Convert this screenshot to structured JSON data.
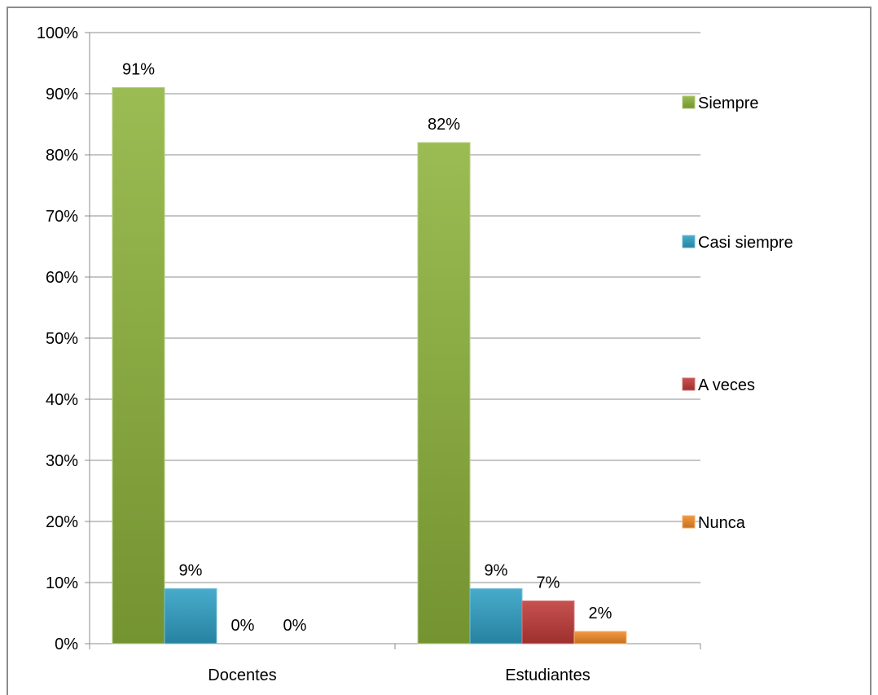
{
  "chart_data": {
    "type": "bar",
    "categories": [
      "Docentes",
      "Estudiantes"
    ],
    "series": [
      {
        "name": "Siempre",
        "values": [
          91,
          82
        ],
        "color": "#8db33c"
      },
      {
        "name": "Casi siempre",
        "values": [
          9,
          9
        ],
        "color": "#2f9fc4"
      },
      {
        "name": "A veces",
        "values": [
          0,
          7
        ],
        "color": "#bf3a38"
      },
      {
        "name": "Nunca",
        "values": [
          0,
          2
        ],
        "color": "#f08a26"
      }
    ],
    "data_labels": [
      [
        "91%",
        "82%"
      ],
      [
        "9%",
        "9%"
      ],
      [
        "0%",
        "7%"
      ],
      [
        "0%",
        "2%"
      ]
    ],
    "y_ticks": [
      "0%",
      "10%",
      "20%",
      "30%",
      "40%",
      "50%",
      "60%",
      "70%",
      "80%",
      "90%",
      "100%"
    ],
    "ylim": [
      0,
      100
    ],
    "grid": true,
    "legend_position": "right",
    "title": "",
    "xlabel": "",
    "ylabel": ""
  }
}
